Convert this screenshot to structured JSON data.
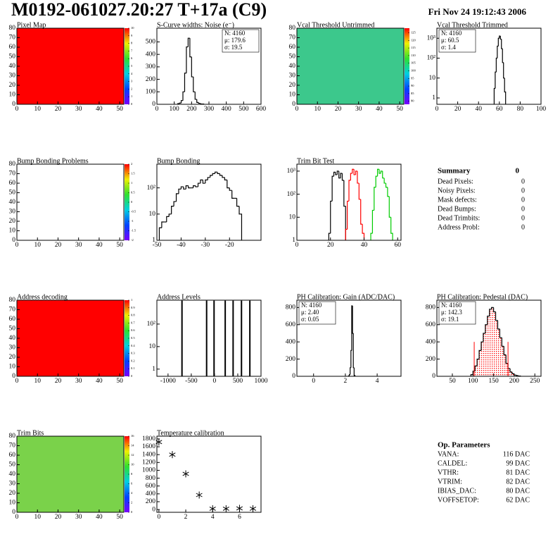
{
  "header": {
    "title": "M0192-061027.20:27 T+17a (C9)",
    "date": "Fri Nov 24 19:12:43 2006"
  },
  "chart_data": [
    {
      "type": "heatmap",
      "title": "Pixel Map",
      "xlim": [
        0,
        52
      ],
      "xticks": [
        0,
        10,
        20,
        30,
        40,
        50
      ],
      "ylim": [
        0,
        80
      ],
      "yticks": [
        0,
        10,
        20,
        30,
        40,
        50,
        60,
        70,
        80
      ],
      "zlim": [
        0,
        10
      ],
      "zticks": [
        0,
        1,
        2,
        3,
        4,
        5,
        6,
        7,
        8,
        9,
        10
      ],
      "fill_color": "#ff0000"
    },
    {
      "type": "histogram",
      "title": "S-Curve widths: Noise (e⁻)",
      "xlim": [
        0,
        600
      ],
      "xticks": [
        0,
        100,
        200,
        300,
        400,
        500,
        600
      ],
      "ylim": [
        0,
        610
      ],
      "yticks": [
        0,
        100,
        200,
        300,
        400,
        500
      ],
      "series": [
        {
          "color": "#000000",
          "bins": [
            120,
            130,
            140,
            150,
            160,
            170,
            180,
            190,
            200,
            210,
            220,
            230,
            240,
            250,
            260,
            270
          ],
          "values": [
            5,
            10,
            30,
            100,
            250,
            460,
            530,
            380,
            220,
            100,
            40,
            15,
            8,
            3,
            2
          ]
        }
      ],
      "stats": [
        "N: 4160",
        "μ: 179.6",
        "σ: 19.5"
      ],
      "stats_corner": "right"
    },
    {
      "type": "heatmap",
      "title": "Vcal Threshold Untrimmed",
      "xlim": [
        0,
        52
      ],
      "xticks": [
        0,
        10,
        20,
        30,
        40,
        50
      ],
      "ylim": [
        0,
        80
      ],
      "yticks": [
        0,
        10,
        20,
        30,
        40,
        50,
        60,
        70,
        80
      ],
      "zlim": [
        78,
        128
      ],
      "zticks": [
        80,
        85,
        90,
        95,
        100,
        105,
        110,
        115,
        120,
        125
      ],
      "fill_color": "#3cc88c"
    },
    {
      "type": "histogram",
      "title": "Vcal Threshold Trimmed",
      "log_y": true,
      "xlim": [
        0,
        100
      ],
      "xticks": [
        0,
        20,
        40,
        60,
        80,
        100
      ],
      "ylim": [
        0.48,
        3200
      ],
      "yticks": [
        1,
        10,
        {
          "value": 100,
          "label": "10²"
        },
        {
          "value": 1000,
          "label": "10³"
        }
      ],
      "series": [
        {
          "color": "#000000",
          "bins": [
            55,
            56,
            57,
            58,
            59,
            60,
            61,
            62,
            63,
            64,
            65,
            66
          ],
          "values": [
            3,
            20,
            100,
            400,
            1000,
            1300,
            900,
            300,
            60,
            10,
            2
          ]
        }
      ],
      "stats": [
        "N: 4160",
        "μ: 60.5",
        "σ:  1.4"
      ],
      "stats_corner": "left"
    },
    {
      "type": "heatmap",
      "title": "Bump Bonding Problems",
      "xlim": [
        0,
        52
      ],
      "xticks": [
        0,
        10,
        20,
        30,
        40,
        50
      ],
      "ylim": [
        0,
        80
      ],
      "yticks": [
        0,
        10,
        20,
        30,
        40,
        50,
        60,
        70,
        80
      ],
      "zlim": [
        -2,
        2
      ],
      "zticks": [
        -2,
        -1.5,
        -1,
        -0.5,
        0,
        0.5,
        1,
        1.5,
        2
      ]
    },
    {
      "type": "histogram",
      "title": "Bump Bonding",
      "log_y": true,
      "xlim": [
        -50,
        -7
      ],
      "xticks": [
        -50,
        -40,
        -30,
        -20
      ],
      "ylim": [
        1,
        800
      ],
      "yticks": [
        1,
        10,
        {
          "value": 100,
          "label": "10²"
        }
      ],
      "series": [
        {
          "color": "#000000",
          "bins": [
            -49,
            -48,
            -47,
            -46,
            -45,
            -44,
            -43,
            -42,
            -41,
            -40,
            -39,
            -38,
            -37,
            -36,
            -35,
            -34,
            -33,
            -32,
            -31,
            -30,
            -29,
            -28,
            -27,
            -26,
            -25,
            -24,
            -23,
            -22,
            -21,
            -20,
            -19,
            -18,
            -17,
            -16,
            -15
          ],
          "values": [
            3,
            5,
            5,
            8,
            10,
            20,
            30,
            60,
            90,
            110,
            90,
            120,
            100,
            100,
            120,
            110,
            150,
            200,
            150,
            200,
            250,
            300,
            350,
            400,
            350,
            300,
            250,
            200,
            100,
            80,
            40,
            40,
            20,
            10
          ]
        }
      ]
    },
    {
      "type": "histogram",
      "title": "Trim Bit Test",
      "log_y": true,
      "xlim": [
        0,
        62
      ],
      "xticks": [
        0,
        20,
        40,
        60
      ],
      "ylim": [
        1,
        2000
      ],
      "yticks": [
        1,
        10,
        {
          "value": 100,
          "label": "10²"
        },
        {
          "value": 1000,
          "label": "10³"
        }
      ],
      "series": [
        {
          "color": "#000000",
          "bins": [
            19,
            20,
            21,
            22,
            23,
            24,
            25,
            26,
            27,
            28,
            29
          ],
          "values": [
            2,
            50,
            600,
            900,
            700,
            1000,
            500,
            800,
            400,
            30
          ]
        },
        {
          "color": "#ff0000",
          "bins": [
            29,
            30,
            31,
            32,
            33,
            34,
            35,
            36,
            37,
            38,
            39,
            40
          ],
          "values": [
            3,
            50,
            400,
            800,
            1200,
            700,
            1000,
            300,
            60,
            5,
            2
          ]
        },
        {
          "color": "#00cc00",
          "bins": [
            44,
            45,
            46,
            47,
            48,
            49,
            50,
            51,
            52,
            53,
            54,
            55,
            56,
            57
          ],
          "values": [
            2,
            20,
            200,
            600,
            1200,
            800,
            1000,
            500,
            300,
            200,
            80,
            10,
            2
          ]
        }
      ]
    },
    {
      "type": "heatmap",
      "title": "Address decoding",
      "xlim": [
        0,
        52
      ],
      "xticks": [
        0,
        10,
        20,
        30,
        40,
        50
      ],
      "ylim": [
        0,
        80
      ],
      "yticks": [
        0,
        10,
        20,
        30,
        40,
        50,
        60,
        70,
        80
      ],
      "zlim": [
        0,
        1
      ],
      "zticks": [
        0,
        0.1,
        0.2,
        0.3,
        0.4,
        0.5,
        0.6,
        0.7,
        0.8,
        0.9,
        1
      ],
      "fill_color": "#ff0000"
    },
    {
      "type": "spikes",
      "title": "Address Levels",
      "log_y": true,
      "xlim": [
        -1240,
        1000
      ],
      "xticks": [
        -1000,
        -500,
        0,
        500,
        1000
      ],
      "ylim": [
        0.48,
        1150
      ],
      "yticks": [
        1,
        10,
        {
          "value": 100,
          "label": "10²"
        }
      ],
      "x": [
        -700,
        -170,
        -10,
        230,
        400,
        580,
        760
      ],
      "values": [
        1100,
        1100,
        1100,
        1100,
        1100,
        1100,
        1100
      ],
      "color": "#000000"
    },
    {
      "type": "histogram",
      "title": "PH Calibration: Gain (ADC/DAC)",
      "xlim": [
        -1.05,
        5.5
      ],
      "xticks": [
        0,
        2,
        4
      ],
      "ylim": [
        0,
        885
      ],
      "yticks": [
        0,
        200,
        400,
        600,
        800
      ],
      "series": [
        {
          "color": "#000000",
          "bins": [
            2.2,
            2.25,
            2.3,
            2.35,
            2.4,
            2.45,
            2.5,
            2.55,
            2.6
          ],
          "values": [
            5,
            20,
            100,
            300,
            820,
            500,
            100,
            10
          ]
        }
      ],
      "stats": [
        "N: 4160",
        "μ: 2.40",
        "σ: 0.05"
      ],
      "stats_corner": "left"
    },
    {
      "type": "histogram",
      "title": "PH Calibration: Pedestal (DAC)",
      "xlim": [
        12.5,
        265
      ],
      "xticks": [
        50,
        100,
        150,
        200,
        250
      ],
      "ylim": [
        0,
        885
      ],
      "yticks": [
        0,
        200,
        400,
        600,
        800
      ],
      "fill_pattern": "red-dots",
      "series": [
        {
          "color": "#000000",
          "bins": [
            95,
            100,
            105,
            110,
            115,
            120,
            125,
            130,
            135,
            140,
            145,
            150,
            155,
            160,
            165,
            170,
            175,
            180,
            185,
            190,
            195,
            200,
            205,
            210,
            215
          ],
          "values": [
            20,
            60,
            120,
            200,
            300,
            400,
            500,
            600,
            700,
            780,
            800,
            750,
            650,
            550,
            450,
            350,
            250,
            150,
            90,
            50,
            30,
            15,
            8,
            3
          ]
        }
      ],
      "cut_lines": [
        {
          "x": 103,
          "y": 400
        },
        {
          "x": 185,
          "y": 400
        }
      ],
      "cut_color": "#ff0000",
      "stats": [
        "N: 4160",
        "μ: 142.3",
        "σ: 19.1"
      ],
      "stats_colors": [
        "#000000",
        "#ff0000",
        "#ff0000"
      ],
      "stats_corner": "left"
    },
    {
      "type": "heatmap",
      "title": "Trim Bits",
      "xlim": [
        0,
        52
      ],
      "xticks": [
        0,
        10,
        20,
        30,
        40,
        50
      ],
      "ylim": [
        0,
        80
      ],
      "yticks": [
        0,
        10,
        20,
        30,
        40,
        50,
        60,
        70,
        80
      ],
      "zlim": [
        0,
        16
      ],
      "zticks": [
        0,
        2,
        4,
        6,
        8,
        10,
        12,
        14,
        16
      ],
      "fill_color": "#7ad24a"
    },
    {
      "type": "scatter",
      "title": "Temperature calibration",
      "xlim": [
        -0.15,
        7.6
      ],
      "xticks": [
        0,
        2,
        4,
        6
      ],
      "ylim": [
        -70,
        1870
      ],
      "yticks": [
        0,
        200,
        400,
        600,
        800,
        1000,
        1200,
        1400,
        1600,
        1800
      ],
      "x": [
        0,
        1,
        2,
        3,
        4,
        5,
        6,
        7
      ],
      "values": [
        1720,
        1400,
        910,
        370,
        20,
        20,
        30,
        20
      ],
      "color": "#000000"
    }
  ],
  "summary": {
    "title": "Summary",
    "value": 0,
    "rows": [
      {
        "label": "Dead Pixels:",
        "value": 0
      },
      {
        "label": "Noisy Pixels:",
        "value": 0
      },
      {
        "label": "Mask defects:",
        "value": 0
      },
      {
        "label": "Dead Bumps:",
        "value": 0
      },
      {
        "label": "Dead Trimbits:",
        "value": 0
      },
      {
        "label": "Address Probl:",
        "value": 0
      }
    ]
  },
  "parameters": {
    "title": "Op. Parameters",
    "rows": [
      {
        "label": "VANA:",
        "value": "116 DAC"
      },
      {
        "label": "CALDEL:",
        "value": "99 DAC"
      },
      {
        "label": "VTHR:",
        "value": "81 DAC"
      },
      {
        "label": "VTRIM:",
        "value": "82 DAC"
      },
      {
        "label": "IBIAS_DAC:",
        "value": "80 DAC"
      },
      {
        "label": "VOFFSETOP:",
        "value": "62 DAC"
      }
    ]
  }
}
